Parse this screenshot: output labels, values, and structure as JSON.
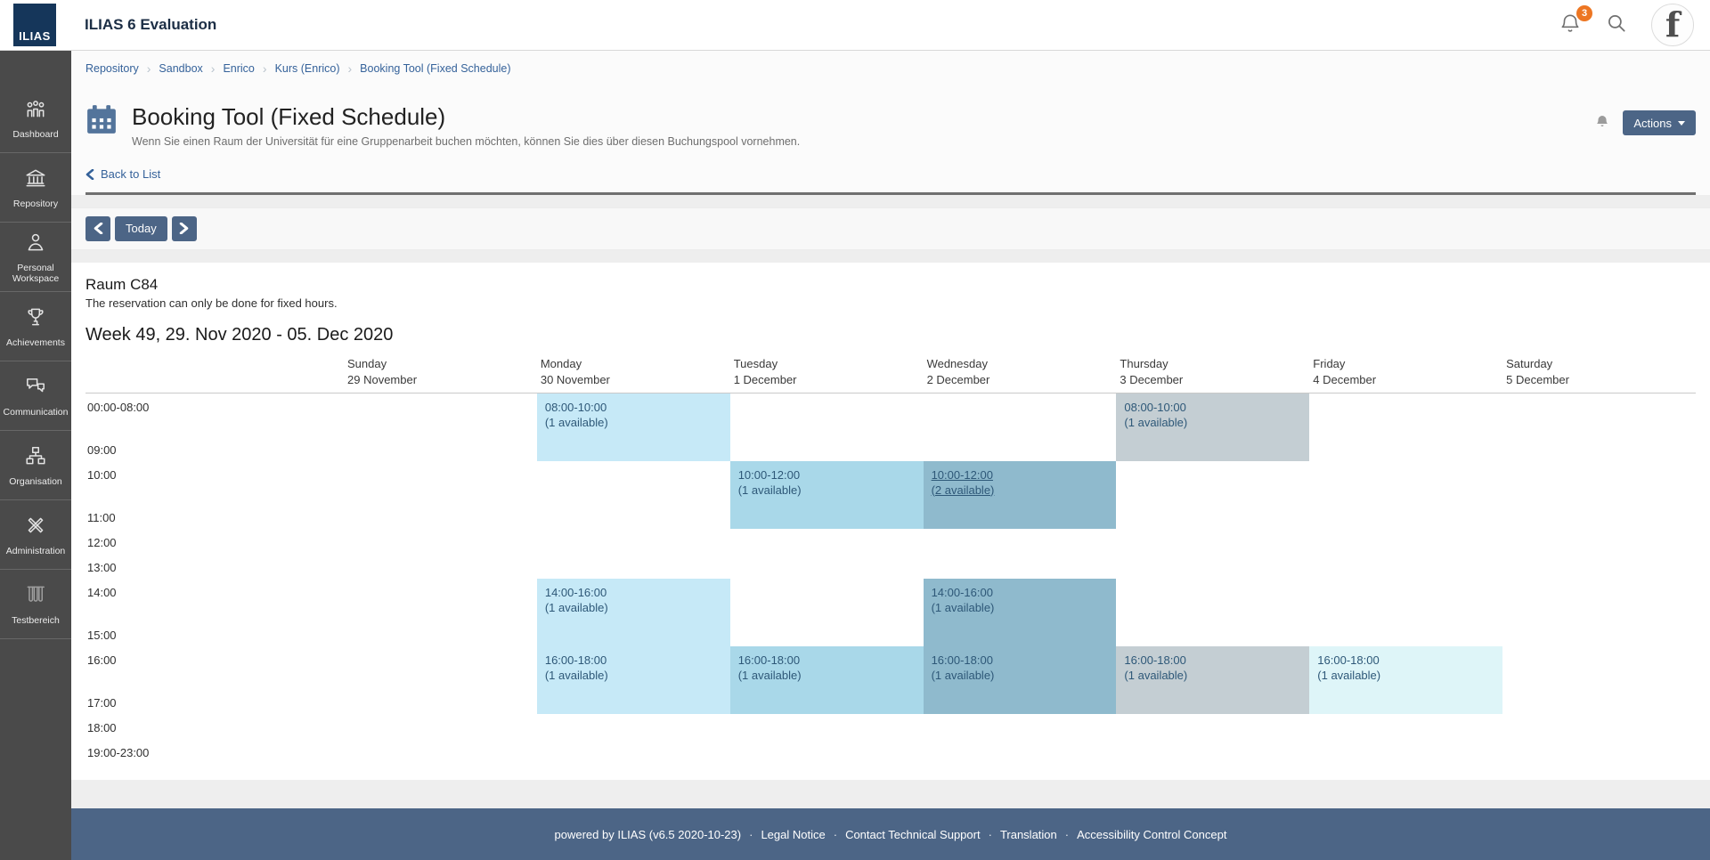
{
  "topbar": {
    "logo_text": "ILIAS",
    "title": "ILIAS 6 Evaluation",
    "notification_count": "3",
    "avatar_letter": "f"
  },
  "breadcrumb": {
    "items": [
      "Repository",
      "Sandbox",
      "Enrico",
      "Kurs (Enrico)",
      "Booking Tool (Fixed Schedule)"
    ]
  },
  "sidebar": {
    "items": [
      {
        "label": "Dashboard",
        "icon": "dashboard-icon",
        "dimmed": false
      },
      {
        "label": "Repository",
        "icon": "repository-icon",
        "dimmed": false
      },
      {
        "label": "Personal Workspace",
        "icon": "personal-workspace-icon",
        "dimmed": false
      },
      {
        "label": "Achievements",
        "icon": "achievements-icon",
        "dimmed": false
      },
      {
        "label": "Communication",
        "icon": "communication-icon",
        "dimmed": false
      },
      {
        "label": "Organisation",
        "icon": "organisation-icon",
        "dimmed": false
      },
      {
        "label": "Administration",
        "icon": "administration-icon",
        "dimmed": false
      },
      {
        "label": "Testbereich",
        "icon": "testbereich-icon",
        "dimmed": true
      }
    ]
  },
  "page": {
    "title": "Booking Tool (Fixed Schedule)",
    "description": "Wenn Sie einen Raum der Universität für eine Gruppenarbeit buchen möchten, können Sie dies über diesen Buchungspool vornehmen.",
    "back_label": "Back to List",
    "actions_label": "Actions"
  },
  "toolbar": {
    "today_label": "Today"
  },
  "booking": {
    "room_title": "Raum C84",
    "room_note": "The reservation can only be done for fixed hours.",
    "week_title": "Week 49, 29. Nov 2020 - 05. Dec 2020"
  },
  "calendar": {
    "days": [
      {
        "name": "Sunday",
        "date": "29 November"
      },
      {
        "name": "Monday",
        "date": "30 November"
      },
      {
        "name": "Tuesday",
        "date": "1 December"
      },
      {
        "name": "Wednesday",
        "date": "2 December"
      },
      {
        "name": "Thursday",
        "date": "3 December"
      },
      {
        "name": "Friday",
        "date": "4 December"
      },
      {
        "name": "Saturday",
        "date": "5 December"
      }
    ],
    "time_rows": [
      {
        "label": "00:00-08:00",
        "tall": true
      },
      {
        "label": "09:00",
        "tall": false
      },
      {
        "label": "10:00",
        "tall": true
      },
      {
        "label": "11:00",
        "tall": false
      },
      {
        "label": "12:00",
        "tall": false
      },
      {
        "label": "13:00",
        "tall": false
      },
      {
        "label": "14:00",
        "tall": true
      },
      {
        "label": "15:00",
        "tall": false
      },
      {
        "label": "16:00",
        "tall": true
      },
      {
        "label": "17:00",
        "tall": false
      },
      {
        "label": "18:00",
        "tall": false
      },
      {
        "label": "19:00-23:00",
        "tall": false
      }
    ],
    "slots": [
      {
        "day": "Monday",
        "day_index": 1,
        "row": 1,
        "time": "08:00-10:00",
        "availability": "(1 available)",
        "color": "#c6e9f7",
        "underline": false
      },
      {
        "day": "Monday",
        "day_index": 1,
        "row": 7,
        "time": "14:00-16:00",
        "availability": "(1 available)",
        "color": "#c6e9f7",
        "underline": false
      },
      {
        "day": "Monday",
        "day_index": 1,
        "row": 9,
        "time": "16:00-18:00",
        "availability": "(1 available)",
        "color": "#c6e9f7",
        "underline": false
      },
      {
        "day": "Tuesday",
        "day_index": 2,
        "row": 3,
        "time": "10:00-12:00",
        "availability": "(1 available)",
        "color": "#a9d8e9",
        "underline": false
      },
      {
        "day": "Tuesday",
        "day_index": 2,
        "row": 9,
        "time": "16:00-18:00",
        "availability": "(1 available)",
        "color": "#a9d8e9",
        "underline": false
      },
      {
        "day": "Wednesday",
        "day_index": 3,
        "row": 3,
        "time": "10:00-12:00",
        "availability": "(2 available)",
        "color": "#8fbacd",
        "underline": true
      },
      {
        "day": "Wednesday",
        "day_index": 3,
        "row": 7,
        "time": "14:00-16:00",
        "availability": "(1 available)",
        "color": "#8fbacd",
        "underline": false
      },
      {
        "day": "Wednesday",
        "day_index": 3,
        "row": 9,
        "time": "16:00-18:00",
        "availability": "(1 available)",
        "color": "#8fbacd",
        "underline": false
      },
      {
        "day": "Thursday",
        "day_index": 4,
        "row": 1,
        "time": "08:00-10:00",
        "availability": "(1 available)",
        "color": "#c4ced3",
        "underline": false
      },
      {
        "day": "Thursday",
        "day_index": 4,
        "row": 9,
        "time": "16:00-18:00",
        "availability": "(1 available)",
        "color": "#c4ced3",
        "underline": false
      },
      {
        "day": "Friday",
        "day_index": 5,
        "row": 9,
        "time": "16:00-18:00",
        "availability": "(1 available)",
        "color": "#def5f8",
        "underline": false
      }
    ]
  },
  "footer": {
    "powered": "powered by ILIAS (v6.5 2020-10-23)",
    "separator": "·",
    "links": [
      "Legal Notice",
      "Contact Technical Support",
      "Translation",
      "Accessibility Control Concept"
    ]
  },
  "colors": {
    "accent": "#4c6586",
    "badge": "#ed7622",
    "link": "#35629a",
    "sidebar_bg": "#4a4a4a",
    "footer_bg": "#4c6586"
  }
}
